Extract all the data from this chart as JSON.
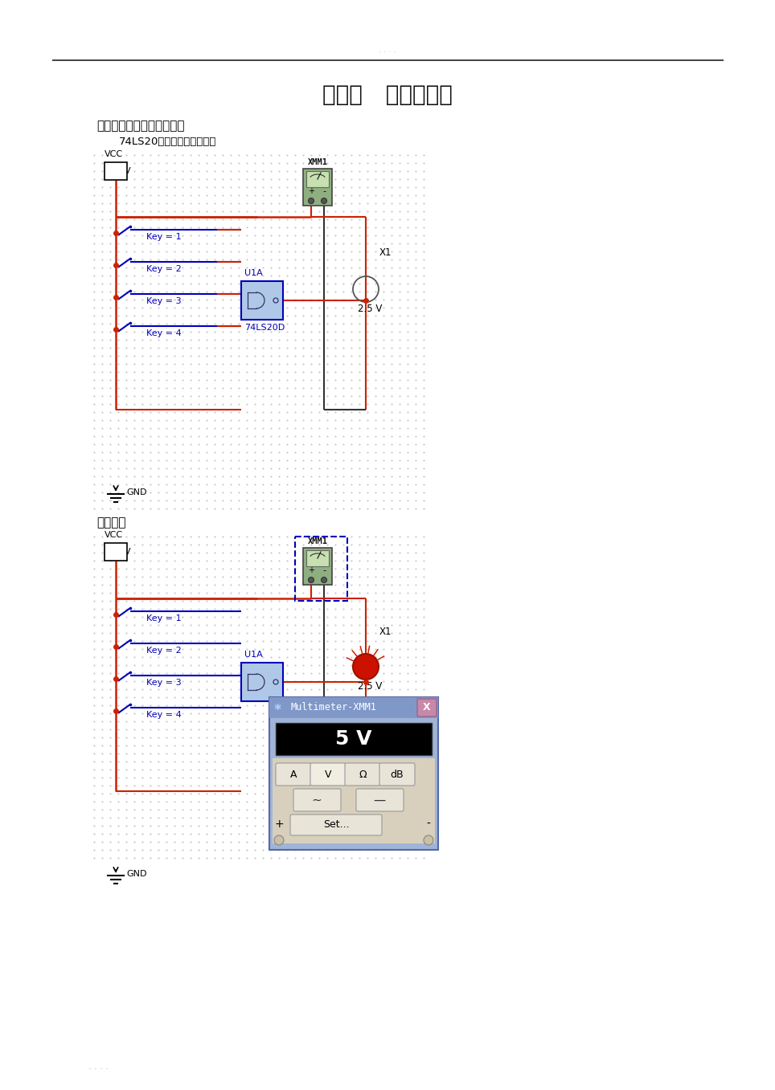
{
  "title": "实验一   逻辑门电路",
  "section1": "一、与非门逻辑功能的测试",
  "subtitle1": "74LS20（双四输入与非门）",
  "sim_label": "仿真结果",
  "bg_color": "#ffffff",
  "wire_red": "#cc2200",
  "wire_blue": "#0000bb",
  "text_blue": "#0000bb",
  "text_black": "#111111",
  "header_line_color": "#222222",
  "multimeter_text": "5 V",
  "xmm_label": "XMM1",
  "u1a_label": "U1A",
  "chip_label": "74LS20D",
  "vcc_label": "VCC",
  "gnd_label": "GND",
  "vcc_val": "5V",
  "x1_label": "X1",
  "volt_label": "2.5 V",
  "key_labels": [
    "Key = 1",
    "Key = 2",
    "Key = 3",
    "Key = 4"
  ],
  "footer_dots": ". . . .",
  "header_dots": ". . . ."
}
